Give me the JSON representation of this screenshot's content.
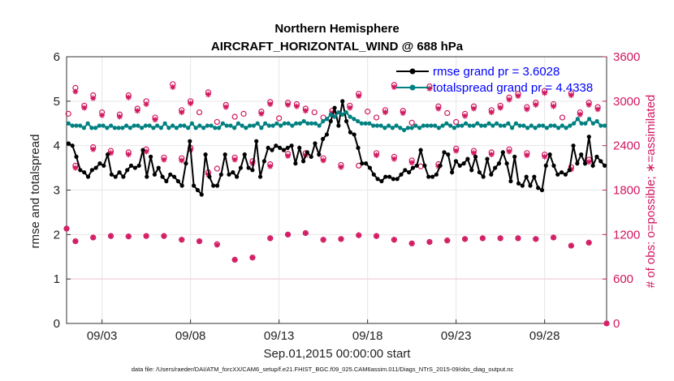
{
  "chart_data": {
    "type": "line",
    "title": "Northern Hemisphere",
    "subtitle": "AIRCRAFT_HORIZONTAL_WIND @ 688 hPa",
    "xlabel": "Sep.01,2015 00:00:00 start",
    "ylabel": "rmse and totalspread",
    "ylabel_right": "# of obs: o=possible; ∗=assimilated",
    "footnote": "data file: /Users/raeder/DAI/ATM_forcXX/CAM6_setup/f.e21.FHIST_BGC.f09_025.CAM6assim.011/Diags_NTrS_2015-09/obs_diag_output.nc",
    "xlim": [
      1,
      31.5
    ],
    "ylim": [
      0,
      6
    ],
    "ylim_right": [
      0,
      3600
    ],
    "x_ticks": [
      3,
      8,
      13,
      18,
      23,
      28
    ],
    "x_tick_labels": [
      "09/03",
      "09/08",
      "09/13",
      "09/18",
      "09/23",
      "09/28"
    ],
    "y_ticks": [
      0,
      1,
      2,
      3,
      4,
      5,
      6
    ],
    "y_tick_labels": [
      "0",
      "1",
      "2",
      "3",
      "4",
      "5",
      "6"
    ],
    "y_right_ticks": [
      0,
      600,
      1200,
      1800,
      2400,
      3000,
      3600
    ],
    "y_right_tick_labels": [
      "0",
      "600",
      "1200",
      "1800",
      "2400",
      "3000",
      "3600"
    ],
    "grid": true,
    "legend_position": "top-right",
    "colors": {
      "rmse": "#000000",
      "spread": "#008080",
      "obs": "#d1175f"
    },
    "series": [
      {
        "name": "rmse grand pr = 3.6028",
        "values": [
          4.05,
          4.0,
          3.75,
          3.45,
          3.4,
          3.3,
          3.45,
          3.5,
          3.6,
          3.55,
          3.8,
          3.35,
          3.3,
          3.4,
          3.3,
          3.45,
          3.55,
          3.5,
          3.55,
          3.9,
          3.3,
          3.75,
          3.35,
          3.5,
          3.3,
          3.2,
          3.35,
          3.3,
          3.2,
          3.1,
          3.6,
          4.1,
          3.1,
          3.0,
          2.9,
          3.8,
          3.3,
          3.1,
          3.1,
          3.35,
          3.8,
          3.35,
          3.4,
          3.3,
          3.5,
          3.8,
          3.5,
          3.45,
          4.1,
          3.3,
          3.65,
          3.95,
          3.9,
          4.0,
          3.95,
          3.9,
          3.95,
          4.0,
          3.6,
          3.95,
          3.65,
          3.85,
          3.75,
          4.05,
          3.8,
          4.15,
          4.25,
          4.55,
          4.85,
          4.45,
          5.0,
          4.55,
          4.3,
          4.25,
          3.95,
          3.6,
          3.6,
          3.5,
          3.35,
          3.25,
          3.2,
          3.3,
          3.3,
          3.25,
          3.25,
          3.35,
          3.45,
          3.4,
          3.5,
          3.55,
          3.9,
          3.55,
          3.3,
          3.3,
          3.35,
          3.55,
          3.85,
          3.8,
          3.4,
          3.65,
          3.55,
          3.6,
          3.7,
          3.45,
          3.75,
          3.4,
          3.3,
          3.7,
          3.35,
          3.5,
          3.6,
          3.85,
          3.6,
          3.2,
          3.75,
          3.15,
          3.1,
          3.3,
          3.1,
          3.3,
          3.05,
          3.0,
          3.55,
          3.8,
          3.55,
          3.35,
          3.4,
          3.35,
          3.45,
          4.0,
          3.6,
          3.8,
          3.6,
          4.2,
          3.55,
          3.75,
          3.65,
          3.55
        ]
      },
      {
        "name": "totalspread grand pr = 4.4338",
        "values": [
          4.5,
          4.45,
          4.45,
          4.45,
          4.4,
          4.5,
          4.4,
          4.4,
          4.45,
          4.45,
          4.4,
          4.45,
          4.4,
          4.4,
          4.4,
          4.45,
          4.4,
          4.45,
          4.45,
          4.4,
          4.45,
          4.45,
          4.4,
          4.45,
          4.4,
          4.5,
          4.4,
          4.45,
          4.4,
          4.45,
          4.45,
          4.4,
          4.5,
          4.4,
          4.45,
          4.4,
          4.45,
          4.45,
          4.4,
          4.4,
          4.5,
          4.45,
          4.45,
          4.4,
          4.5,
          4.45,
          4.4,
          4.45,
          4.45,
          4.5,
          4.4,
          4.5,
          4.45,
          4.45,
          4.5,
          4.45,
          4.5,
          4.5,
          4.45,
          4.5,
          4.5,
          4.55,
          4.5,
          4.5,
          4.5,
          4.45,
          4.55,
          4.6,
          4.7,
          4.65,
          4.75,
          4.7,
          4.75,
          4.65,
          4.6,
          4.55,
          4.5,
          4.5,
          4.5,
          4.45,
          4.45,
          4.45,
          4.4,
          4.45,
          4.4,
          4.45,
          4.4,
          4.35,
          4.4,
          4.4,
          4.45,
          4.4,
          4.45,
          4.45,
          4.45,
          4.45,
          4.4,
          4.45,
          4.5,
          4.45,
          4.4,
          4.45,
          4.45,
          4.5,
          4.45,
          4.45,
          4.5,
          4.45,
          4.45,
          4.5,
          4.45,
          4.5,
          4.45,
          4.45,
          4.5,
          4.4,
          4.5,
          4.45,
          4.45,
          4.4,
          4.45,
          4.4,
          4.45,
          4.45,
          4.4,
          4.45,
          4.45,
          4.4,
          4.45,
          4.4,
          4.45,
          4.5,
          4.6,
          4.5,
          4.5,
          4.6,
          4.5,
          4.55,
          4.45,
          4.45
        ]
      }
    ],
    "obs_possible": [
      {
        "x": 1.0,
        "y": 1280
      },
      {
        "x": 1.5,
        "y": 1110
      },
      {
        "x": 2.5,
        "y": 1160
      },
      {
        "x": 3.5,
        "y": 1180
      },
      {
        "x": 4.5,
        "y": 1175
      },
      {
        "x": 5.5,
        "y": 1180
      },
      {
        "x": 6.5,
        "y": 1180
      },
      {
        "x": 7.5,
        "y": 1130
      },
      {
        "x": 8.5,
        "y": 1110
      },
      {
        "x": 9.5,
        "y": 1070
      },
      {
        "x": 10.5,
        "y": 860
      },
      {
        "x": 11.5,
        "y": 890
      },
      {
        "x": 12.5,
        "y": 1150
      },
      {
        "x": 13.5,
        "y": 1200
      },
      {
        "x": 14.5,
        "y": 1220
      },
      {
        "x": 15.5,
        "y": 1130
      },
      {
        "x": 16.5,
        "y": 1140
      },
      {
        "x": 17.5,
        "y": 1190
      },
      {
        "x": 18.5,
        "y": 1180
      },
      {
        "x": 19.5,
        "y": 1130
      },
      {
        "x": 20.5,
        "y": 1080
      },
      {
        "x": 21.5,
        "y": 1100
      },
      {
        "x": 22.5,
        "y": 1120
      },
      {
        "x": 23.5,
        "y": 1140
      },
      {
        "x": 24.5,
        "y": 1150
      },
      {
        "x": 25.5,
        "y": 1150
      },
      {
        "x": 26.5,
        "y": 1150
      },
      {
        "x": 27.5,
        "y": 1140
      },
      {
        "x": 28.5,
        "y": 1160
      },
      {
        "x": 29.5,
        "y": 1050
      },
      {
        "x": 30.5,
        "y": 1090
      },
      {
        "x": 1.1,
        "y": 2830
      },
      {
        "x": 1.5,
        "y": 3180
      },
      {
        "x": 2.0,
        "y": 2940
      },
      {
        "x": 2.5,
        "y": 3080
      },
      {
        "x": 3.0,
        "y": 2850
      },
      {
        "x": 4.0,
        "y": 2820
      },
      {
        "x": 4.5,
        "y": 3080
      },
      {
        "x": 5.0,
        "y": 2900
      },
      {
        "x": 5.5,
        "y": 3000
      },
      {
        "x": 6.0,
        "y": 2780
      },
      {
        "x": 7.0,
        "y": 3230
      },
      {
        "x": 7.5,
        "y": 2880
      },
      {
        "x": 8.0,
        "y": 3000
      },
      {
        "x": 8.5,
        "y": 2850
      },
      {
        "x": 9.0,
        "y": 3120
      },
      {
        "x": 9.5,
        "y": 2720
      },
      {
        "x": 10.0,
        "y": 2950
      },
      {
        "x": 10.5,
        "y": 2790
      },
      {
        "x": 11.0,
        "y": 2830
      },
      {
        "x": 12.0,
        "y": 2860
      },
      {
        "x": 12.5,
        "y": 2990
      },
      {
        "x": 13.0,
        "y": 2770
      },
      {
        "x": 13.5,
        "y": 2980
      },
      {
        "x": 14.0,
        "y": 2960
      },
      {
        "x": 14.5,
        "y": 2900
      },
      {
        "x": 15.0,
        "y": 2850
      },
      {
        "x": 15.5,
        "y": 2780
      },
      {
        "x": 16.0,
        "y": 2870
      },
      {
        "x": 17.0,
        "y": 2940
      },
      {
        "x": 17.5,
        "y": 3100
      },
      {
        "x": 18.0,
        "y": 2860
      },
      {
        "x": 18.5,
        "y": 2780
      },
      {
        "x": 19.0,
        "y": 2880
      },
      {
        "x": 19.5,
        "y": 3220
      },
      {
        "x": 20.0,
        "y": 2870
      },
      {
        "x": 20.5,
        "y": 2710
      },
      {
        "x": 21.5,
        "y": 3200
      },
      {
        "x": 22.0,
        "y": 2930
      },
      {
        "x": 22.5,
        "y": 2840
      },
      {
        "x": 23.0,
        "y": 2720
      },
      {
        "x": 23.5,
        "y": 2830
      },
      {
        "x": 24.0,
        "y": 2930
      },
      {
        "x": 25.0,
        "y": 2880
      },
      {
        "x": 25.5,
        "y": 2940
      },
      {
        "x": 26.0,
        "y": 3050
      },
      {
        "x": 26.5,
        "y": 3100
      },
      {
        "x": 27.0,
        "y": 2920
      },
      {
        "x": 27.5,
        "y": 2980
      },
      {
        "x": 28.0,
        "y": 3140
      },
      {
        "x": 28.5,
        "y": 2960
      },
      {
        "x": 29.0,
        "y": 2780
      },
      {
        "x": 29.5,
        "y": 3110
      },
      {
        "x": 30.0,
        "y": 2850
      },
      {
        "x": 30.5,
        "y": 2980
      },
      {
        "x": 31.0,
        "y": 2920
      },
      {
        "x": 1.5,
        "y": 2130
      },
      {
        "x": 2.5,
        "y": 2380
      },
      {
        "x": 3.5,
        "y": 2330
      },
      {
        "x": 4.5,
        "y": 2310
      },
      {
        "x": 5.5,
        "y": 2350
      },
      {
        "x": 6.5,
        "y": 2240
      },
      {
        "x": 7.5,
        "y": 2230
      },
      {
        "x": 8.0,
        "y": 2370
      },
      {
        "x": 9.0,
        "y": 2040
      },
      {
        "x": 9.5,
        "y": 2090
      },
      {
        "x": 10.5,
        "y": 2240
      },
      {
        "x": 11.5,
        "y": 2190
      },
      {
        "x": 12.5,
        "y": 2150
      },
      {
        "x": 13.5,
        "y": 2290
      },
      {
        "x": 14.5,
        "y": 2300
      },
      {
        "x": 15.5,
        "y": 2230
      },
      {
        "x": 16.5,
        "y": 2140
      },
      {
        "x": 17.5,
        "y": 2130
      },
      {
        "x": 18.5,
        "y": 2300
      },
      {
        "x": 19.5,
        "y": 2250
      },
      {
        "x": 20.5,
        "y": 2200
      },
      {
        "x": 21.0,
        "y": 2120
      },
      {
        "x": 22.0,
        "y": 2150
      },
      {
        "x": 23.0,
        "y": 2360
      },
      {
        "x": 24.0,
        "y": 2330
      },
      {
        "x": 25.0,
        "y": 2310
      },
      {
        "x": 26.0,
        "y": 2350
      },
      {
        "x": 27.0,
        "y": 2300
      },
      {
        "x": 28.0,
        "y": 2280
      },
      {
        "x": 29.5,
        "y": 2110
      },
      {
        "x": 30.5,
        "y": 2210
      },
      {
        "x": 31.5,
        "y": 0
      }
    ],
    "obs_assimilated": [
      {
        "x": 1.0,
        "y": 1280
      },
      {
        "x": 1.5,
        "y": 1110
      },
      {
        "x": 2.5,
        "y": 1160
      },
      {
        "x": 3.5,
        "y": 1180
      },
      {
        "x": 4.5,
        "y": 1175
      },
      {
        "x": 5.5,
        "y": 1180
      },
      {
        "x": 6.5,
        "y": 1180
      },
      {
        "x": 7.5,
        "y": 1130
      },
      {
        "x": 8.5,
        "y": 1110
      },
      {
        "x": 9.5,
        "y": 1060
      },
      {
        "x": 10.5,
        "y": 860
      },
      {
        "x": 11.5,
        "y": 890
      },
      {
        "x": 12.5,
        "y": 1150
      },
      {
        "x": 13.5,
        "y": 1200
      },
      {
        "x": 14.5,
        "y": 1220
      },
      {
        "x": 15.5,
        "y": 1130
      },
      {
        "x": 16.5,
        "y": 1140
      },
      {
        "x": 17.5,
        "y": 1190
      },
      {
        "x": 18.5,
        "y": 1180
      },
      {
        "x": 19.5,
        "y": 1130
      },
      {
        "x": 20.5,
        "y": 1080
      },
      {
        "x": 21.5,
        "y": 1100
      },
      {
        "x": 22.5,
        "y": 1120
      },
      {
        "x": 23.5,
        "y": 1140
      },
      {
        "x": 24.5,
        "y": 1150
      },
      {
        "x": 25.5,
        "y": 1150
      },
      {
        "x": 26.5,
        "y": 1150
      },
      {
        "x": 27.5,
        "y": 1140
      },
      {
        "x": 28.5,
        "y": 1160
      },
      {
        "x": 29.5,
        "y": 1050
      },
      {
        "x": 30.5,
        "y": 1090
      },
      {
        "x": 1.5,
        "y": 3130
      },
      {
        "x": 2.0,
        "y": 2910
      },
      {
        "x": 2.5,
        "y": 3040
      },
      {
        "x": 3.0,
        "y": 2810
      },
      {
        "x": 4.0,
        "y": 2790
      },
      {
        "x": 4.5,
        "y": 3050
      },
      {
        "x": 5.0,
        "y": 2870
      },
      {
        "x": 5.5,
        "y": 2960
      },
      {
        "x": 6.0,
        "y": 2750
      },
      {
        "x": 7.0,
        "y": 3190
      },
      {
        "x": 7.5,
        "y": 2850
      },
      {
        "x": 8.0,
        "y": 2970
      },
      {
        "x": 9.0,
        "y": 3090
      },
      {
        "x": 10.0,
        "y": 2920
      },
      {
        "x": 12.0,
        "y": 2830
      },
      {
        "x": 12.5,
        "y": 2960
      },
      {
        "x": 13.5,
        "y": 2950
      },
      {
        "x": 14.0,
        "y": 2930
      },
      {
        "x": 14.5,
        "y": 2870
      },
      {
        "x": 16.0,
        "y": 2840
      },
      {
        "x": 17.0,
        "y": 2910
      },
      {
        "x": 17.5,
        "y": 3070
      },
      {
        "x": 19.0,
        "y": 2850
      },
      {
        "x": 19.5,
        "y": 3190
      },
      {
        "x": 20.0,
        "y": 2840
      },
      {
        "x": 21.5,
        "y": 3170
      },
      {
        "x": 22.0,
        "y": 2900
      },
      {
        "x": 23.5,
        "y": 2800
      },
      {
        "x": 24.0,
        "y": 2900
      },
      {
        "x": 25.0,
        "y": 2850
      },
      {
        "x": 25.5,
        "y": 2910
      },
      {
        "x": 26.0,
        "y": 3020
      },
      {
        "x": 26.5,
        "y": 3070
      },
      {
        "x": 27.0,
        "y": 2890
      },
      {
        "x": 27.5,
        "y": 2950
      },
      {
        "x": 28.0,
        "y": 3110
      },
      {
        "x": 28.5,
        "y": 2930
      },
      {
        "x": 29.5,
        "y": 3080
      },
      {
        "x": 30.0,
        "y": 2820
      },
      {
        "x": 30.5,
        "y": 2950
      },
      {
        "x": 31.0,
        "y": 2890
      },
      {
        "x": 1.5,
        "y": 2100
      },
      {
        "x": 2.5,
        "y": 2350
      },
      {
        "x": 3.5,
        "y": 2300
      },
      {
        "x": 4.5,
        "y": 2280
      },
      {
        "x": 5.5,
        "y": 2320
      },
      {
        "x": 6.5,
        "y": 2210
      },
      {
        "x": 7.5,
        "y": 2200
      },
      {
        "x": 8.0,
        "y": 2340
      },
      {
        "x": 9.0,
        "y": 2010
      },
      {
        "x": 10.5,
        "y": 2210
      },
      {
        "x": 11.5,
        "y": 2160
      },
      {
        "x": 12.5,
        "y": 2120
      },
      {
        "x": 13.5,
        "y": 2260
      },
      {
        "x": 14.5,
        "y": 2270
      },
      {
        "x": 15.5,
        "y": 2200
      },
      {
        "x": 16.5,
        "y": 2110
      },
      {
        "x": 18.5,
        "y": 2270
      },
      {
        "x": 19.5,
        "y": 2220
      },
      {
        "x": 20.5,
        "y": 2170
      },
      {
        "x": 22.0,
        "y": 2120
      },
      {
        "x": 23.0,
        "y": 2330
      },
      {
        "x": 24.0,
        "y": 2300
      },
      {
        "x": 25.0,
        "y": 2280
      },
      {
        "x": 26.0,
        "y": 2320
      },
      {
        "x": 27.0,
        "y": 2270
      },
      {
        "x": 28.0,
        "y": 2250
      },
      {
        "x": 29.5,
        "y": 2080
      },
      {
        "x": 30.5,
        "y": 2180
      },
      {
        "x": 31.5,
        "y": 0
      }
    ]
  }
}
